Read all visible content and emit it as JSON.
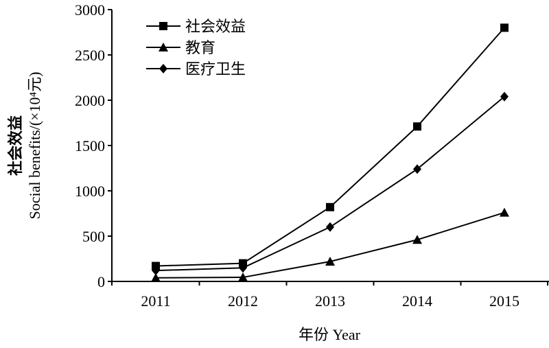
{
  "chart_data": {
    "type": "line",
    "title": "",
    "x": [
      "2011",
      "2012",
      "2013",
      "2014",
      "2015"
    ],
    "xlabel": "年份 Year",
    "ylabel_cn": "社会效益",
    "ylabel_en": "Social benefits/(×10⁴元)",
    "ylim": [
      0,
      3000
    ],
    "yticks": [
      "0",
      "500",
      "1000",
      "1500",
      "2000",
      "2500",
      "3000"
    ],
    "legend_position": "top-left",
    "grid": false,
    "series": [
      {
        "name": "社会效益",
        "marker": "square",
        "values": [
          170,
          200,
          820,
          1710,
          2800
        ]
      },
      {
        "name": "教育",
        "marker": "triangle",
        "values": [
          40,
          45,
          220,
          460,
          760
        ]
      },
      {
        "name": "医疗卫生",
        "marker": "diamond",
        "values": [
          120,
          150,
          600,
          1240,
          2040
        ]
      }
    ]
  }
}
